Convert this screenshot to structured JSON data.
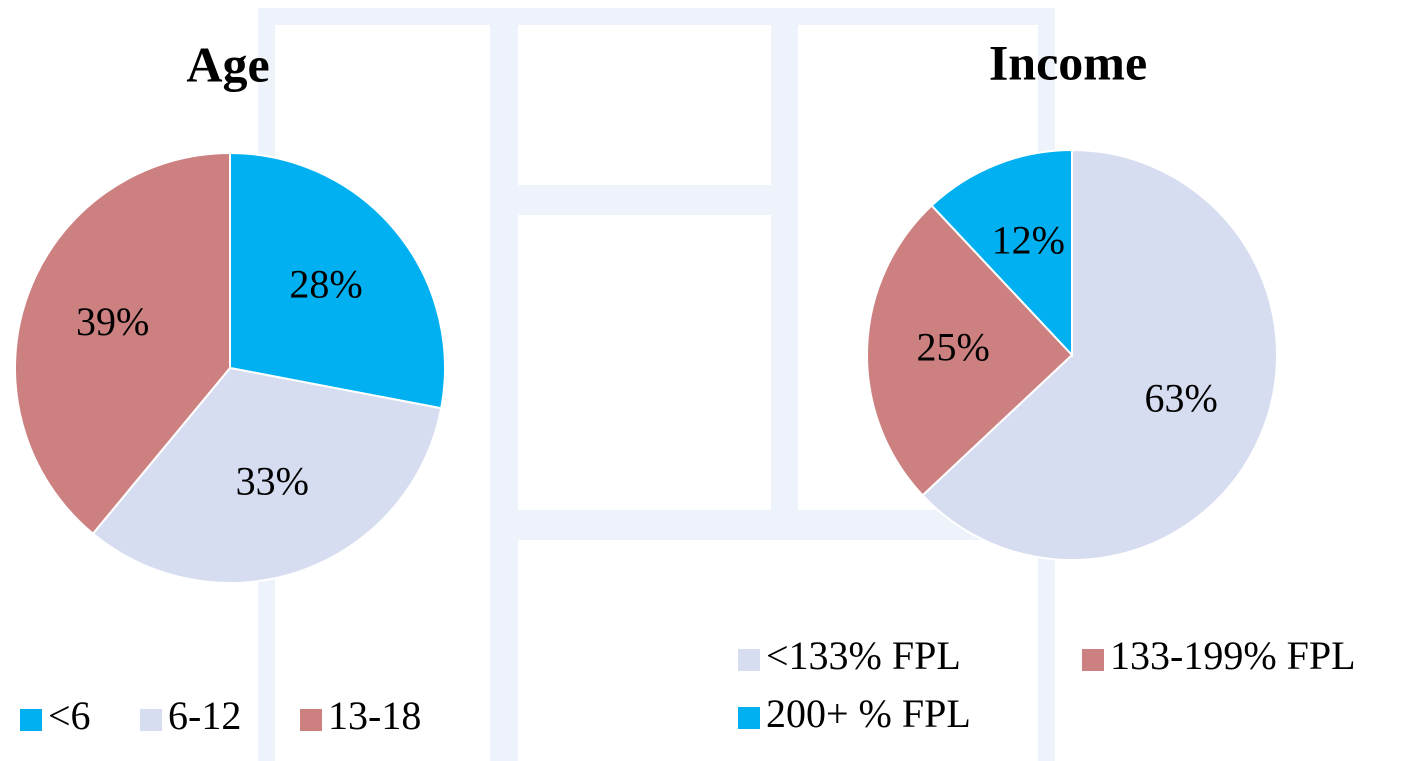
{
  "chart_data": [
    {
      "type": "pie",
      "title": "Age",
      "categories": [
        "<6",
        "6-12",
        "13-18"
      ],
      "values": [
        28,
        33,
        39
      ],
      "value_labels": [
        "28%",
        "33%",
        "39%"
      ],
      "colors": [
        "#00b0f0",
        "#d7ddf0",
        "#cd8080"
      ]
    },
    {
      "type": "pie",
      "title": "Income",
      "categories": [
        "<133% FPL",
        "133-199% FPL",
        "200+ % FPL"
      ],
      "values": [
        63,
        25,
        12
      ],
      "value_labels": [
        "63%",
        "25%",
        "12%"
      ],
      "colors": [
        "#d7ddf0",
        "#cd8080",
        "#00b0f0"
      ]
    }
  ]
}
